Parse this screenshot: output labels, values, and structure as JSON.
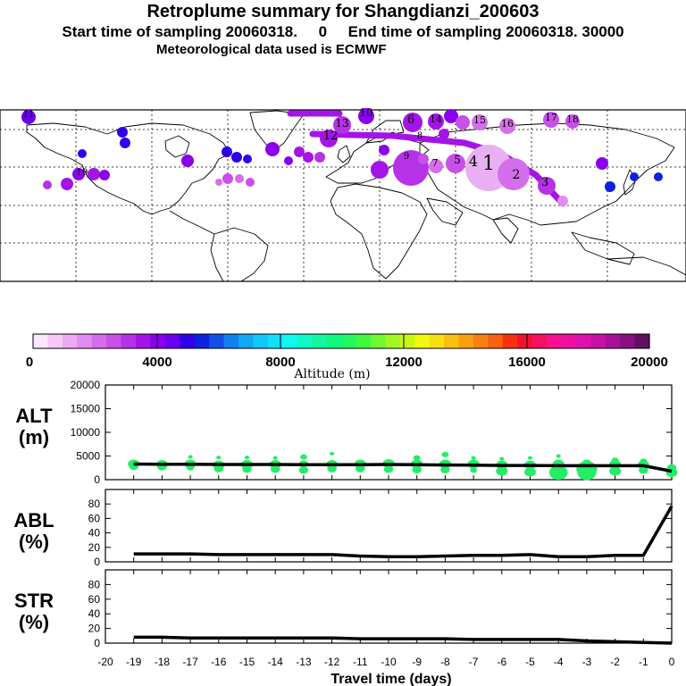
{
  "titles": {
    "line1": "Retroplume summary for Shangdianzi_200603",
    "line2": "Start time of sampling 20060318.     0     End time of sampling 20060318. 30000",
    "line3": "Meteorological data used is ECMWF"
  },
  "map": {
    "plume_numbers": [
      "1",
      "2",
      "3",
      "4",
      "5",
      "6",
      "7",
      "8",
      "9",
      "10",
      "11",
      "12",
      "13",
      "14",
      "15",
      "16",
      "17",
      "18",
      "19"
    ]
  },
  "colorbar": {
    "label": "Altitude (m)",
    "ticks": [
      "0",
      "4000",
      "8000",
      "12000",
      "16000",
      "20000"
    ],
    "colors": [
      "#fde6fd",
      "#f5c8f8",
      "#ecaaf4",
      "#e08cf0",
      "#d46eec",
      "#c850e8",
      "#b632e6",
      "#a414e6",
      "#8a00ec",
      "#6a00f0",
      "#3000e8",
      "#1020e0",
      "#1050e8",
      "#1080f0",
      "#10a8f4",
      "#10c8f8",
      "#10e0f8",
      "#10f8f0",
      "#10f8c8",
      "#10f8a0",
      "#10f880",
      "#20f860",
      "#40f840",
      "#70f830",
      "#a0f820",
      "#c8f810",
      "#f0f810",
      "#f8e010",
      "#f8c010",
      "#f8a010",
      "#f88010",
      "#f86010",
      "#f83010",
      "#f81030",
      "#f81060",
      "#f81090",
      "#f010a0",
      "#e010b0",
      "#c810a8",
      "#a81098",
      "#881080",
      "#601060"
    ]
  },
  "chart_data": [
    {
      "type": "line",
      "panel_label": [
        "ALT",
        "(m)"
      ],
      "ylim": [
        0,
        20000
      ],
      "yticks": [
        "0",
        "5000",
        "10000",
        "15000",
        "20000"
      ],
      "x": [
        -19,
        -18,
        -17,
        -16,
        -15,
        -14,
        -13,
        -12,
        -11,
        -10,
        -9,
        -8,
        -7,
        -6,
        -5,
        -4,
        -3,
        -2,
        -1,
        0
      ],
      "values": [
        3300,
        3250,
        3250,
        3200,
        3200,
        3200,
        3150,
        3150,
        3150,
        3200,
        3150,
        3100,
        3050,
        3000,
        3000,
        2950,
        2950,
        2950,
        2950,
        1800
      ],
      "points": [
        {
          "x": -19,
          "y": 3300,
          "r": 5
        },
        {
          "x": -19,
          "y": 2800,
          "r": 4
        },
        {
          "x": -18,
          "y": 3200,
          "r": 5
        },
        {
          "x": -18,
          "y": 2700,
          "r": 4
        },
        {
          "x": -17,
          "y": 3300,
          "r": 5
        },
        {
          "x": -17,
          "y": 4800,
          "r": 2
        },
        {
          "x": -17,
          "y": 2500,
          "r": 3
        },
        {
          "x": -16,
          "y": 3100,
          "r": 5
        },
        {
          "x": -16,
          "y": 4700,
          "r": 2
        },
        {
          "x": -16,
          "y": 2300,
          "r": 4
        },
        {
          "x": -15,
          "y": 3200,
          "r": 5
        },
        {
          "x": -15,
          "y": 4700,
          "r": 2
        },
        {
          "x": -15,
          "y": 2200,
          "r": 4
        },
        {
          "x": -14,
          "y": 3200,
          "r": 5
        },
        {
          "x": -14,
          "y": 4600,
          "r": 2
        },
        {
          "x": -14,
          "y": 2200,
          "r": 4
        },
        {
          "x": -13,
          "y": 3300,
          "r": 4
        },
        {
          "x": -13,
          "y": 4800,
          "r": 3
        },
        {
          "x": -13,
          "y": 2000,
          "r": 4
        },
        {
          "x": -12,
          "y": 3200,
          "r": 5
        },
        {
          "x": -12,
          "y": 5500,
          "r": 2
        },
        {
          "x": -12,
          "y": 2300,
          "r": 4
        },
        {
          "x": -11,
          "y": 3300,
          "r": 5
        },
        {
          "x": -11,
          "y": 2300,
          "r": 4
        },
        {
          "x": -10,
          "y": 3400,
          "r": 5
        },
        {
          "x": -10,
          "y": 2200,
          "r": 4
        },
        {
          "x": -9,
          "y": 4600,
          "r": 3
        },
        {
          "x": -9,
          "y": 3300,
          "r": 5
        },
        {
          "x": -9,
          "y": 2100,
          "r": 4
        },
        {
          "x": -8,
          "y": 5300,
          "r": 3
        },
        {
          "x": -8,
          "y": 3300,
          "r": 5
        },
        {
          "x": -8,
          "y": 2100,
          "r": 4
        },
        {
          "x": -7,
          "y": 4600,
          "r": 2
        },
        {
          "x": -7,
          "y": 3300,
          "r": 5
        },
        {
          "x": -7,
          "y": 2000,
          "r": 3
        },
        {
          "x": -6,
          "y": 4400,
          "r": 2
        },
        {
          "x": -6,
          "y": 3100,
          "r": 5
        },
        {
          "x": -6,
          "y": 1800,
          "r": 5
        },
        {
          "x": -5,
          "y": 4600,
          "r": 2
        },
        {
          "x": -5,
          "y": 3100,
          "r": 5
        },
        {
          "x": -5,
          "y": 1600,
          "r": 5
        },
        {
          "x": -4,
          "y": 5000,
          "r": 2
        },
        {
          "x": -4,
          "y": 3300,
          "r": 5
        },
        {
          "x": -4,
          "y": 1500,
          "r": 8
        },
        {
          "x": -3,
          "y": 3500,
          "r": 4
        },
        {
          "x": -3,
          "y": 2200,
          "r": 9
        },
        {
          "x": -3,
          "y": 1400,
          "r": 8
        },
        {
          "x": -2,
          "y": 4100,
          "r": 3
        },
        {
          "x": -2,
          "y": 3200,
          "r": 5
        },
        {
          "x": -2,
          "y": 1800,
          "r": 5
        },
        {
          "x": -1,
          "y": 3900,
          "r": 3
        },
        {
          "x": -1,
          "y": 3100,
          "r": 5
        },
        {
          "x": -1,
          "y": 2000,
          "r": 4
        },
        {
          "x": 0,
          "y": 2500,
          "r": 4
        },
        {
          "x": 0,
          "y": 1500,
          "r": 5
        }
      ]
    },
    {
      "type": "line",
      "panel_label": [
        "ABL",
        "(%)"
      ],
      "ylim": [
        0,
        100
      ],
      "yticks": [
        "0",
        "20",
        "40",
        "60",
        "80"
      ],
      "x": [
        -19,
        -18,
        -17,
        -16,
        -15,
        -14,
        -13,
        -12,
        -11,
        -10,
        -9,
        -8,
        -7,
        -6,
        -5,
        -4,
        -3,
        -2,
        -1,
        0
      ],
      "values": [
        11,
        11,
        11,
        10,
        10,
        10,
        10,
        10,
        8,
        7,
        7,
        8,
        9,
        9,
        10,
        7,
        7,
        9,
        9,
        77
      ]
    },
    {
      "type": "line",
      "panel_label": [
        "STR",
        "(%)"
      ],
      "ylim": [
        0,
        100
      ],
      "yticks": [
        "0",
        "20",
        "40",
        "60",
        "80"
      ],
      "xlabel": "Travel time (days)",
      "xticks": [
        "-20",
        "-19",
        "-18",
        "-17",
        "-16",
        "-15",
        "-14",
        "-13",
        "-12",
        "-11",
        "-10",
        "-9",
        "-8",
        "-7",
        "-6",
        "-5",
        "-4",
        "-3",
        "-2",
        "-1",
        "0"
      ],
      "x": [
        -19,
        -18,
        -17,
        -16,
        -15,
        -14,
        -13,
        -12,
        -11,
        -10,
        -9,
        -8,
        -7,
        -6,
        -5,
        -4,
        -3,
        -2,
        -1,
        0
      ],
      "values": [
        8,
        8,
        7,
        7,
        7,
        7,
        7,
        7,
        6,
        6,
        6,
        6,
        5,
        5,
        5,
        5,
        3,
        2,
        1,
        0
      ]
    }
  ]
}
